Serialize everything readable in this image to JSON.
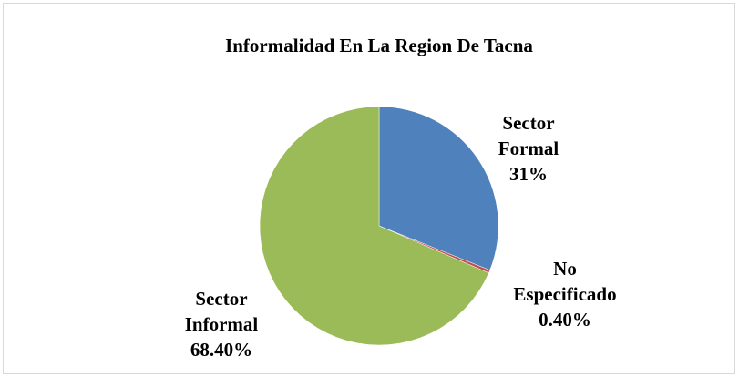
{
  "chart_data": {
    "type": "pie",
    "title": "Informalidad En La Region De Tacna",
    "categories": [
      "Sector Formal",
      "No Especificado",
      "Sector Informal"
    ],
    "values": [
      31,
      0.4,
      68.4
    ],
    "value_labels": [
      "31%",
      "0.40%",
      "68.40%"
    ],
    "colors": [
      "#4f81bd",
      "#c0504d",
      "#9bbb59"
    ]
  }
}
